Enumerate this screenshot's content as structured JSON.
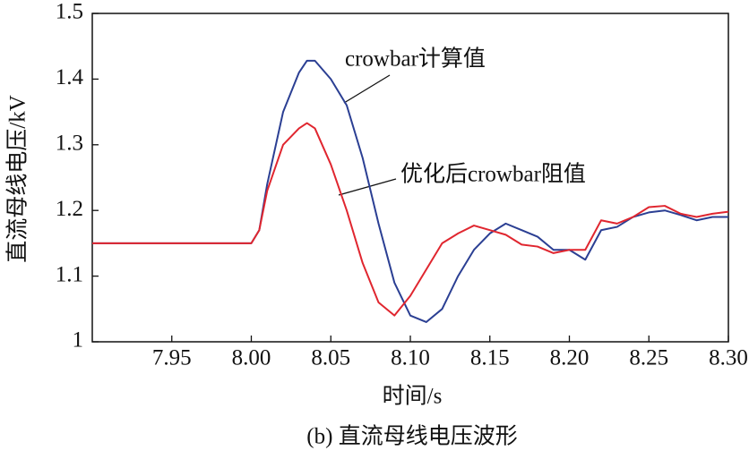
{
  "chart_data": {
    "type": "line",
    "x_label": "时间/s",
    "y_label": "直流母线电压/kV",
    "caption": "(b) 直流母线电压波形",
    "annotations": [
      {
        "text": "crowbar计算值"
      },
      {
        "text": "优化后crowbar阻值"
      }
    ],
    "x": [
      7.9,
      8.0,
      8.005,
      8.01,
      8.02,
      8.03,
      8.035,
      8.04,
      8.05,
      8.06,
      8.07,
      8.08,
      8.09,
      8.1,
      8.11,
      8.12,
      8.13,
      8.14,
      8.15,
      8.16,
      8.17,
      8.18,
      8.19,
      8.2,
      8.21,
      8.22,
      8.23,
      8.24,
      8.25,
      8.26,
      8.27,
      8.28,
      8.29,
      8.3
    ],
    "series": [
      {
        "name": "crowbar计算值",
        "color": "#2b3f93",
        "values": [
          1.15,
          1.15,
          1.17,
          1.24,
          1.35,
          1.41,
          1.428,
          1.428,
          1.4,
          1.36,
          1.28,
          1.18,
          1.09,
          1.04,
          1.03,
          1.05,
          1.1,
          1.14,
          1.165,
          1.18,
          1.17,
          1.16,
          1.14,
          1.14,
          1.125,
          1.17,
          1.175,
          1.19,
          1.197,
          1.2,
          1.193,
          1.185,
          1.19,
          1.19
        ]
      },
      {
        "name": "优化后crowbar阻值",
        "color": "#e0262f",
        "values": [
          1.15,
          1.15,
          1.17,
          1.23,
          1.3,
          1.325,
          1.333,
          1.325,
          1.27,
          1.2,
          1.12,
          1.06,
          1.04,
          1.07,
          1.11,
          1.15,
          1.165,
          1.177,
          1.17,
          1.163,
          1.148,
          1.145,
          1.135,
          1.14,
          1.14,
          1.185,
          1.18,
          1.19,
          1.205,
          1.207,
          1.195,
          1.19,
          1.195,
          1.198
        ]
      }
    ],
    "xlim": [
      7.9,
      8.3
    ],
    "xticks": [
      7.95,
      {
        "value": 8.0,
        "label": "8.00"
      },
      8.05,
      {
        "value": 8.1,
        "label": "8.10"
      },
      8.15,
      {
        "value": 8.2,
        "label": "8.20"
      },
      8.25,
      {
        "value": 8.3,
        "label": "8.30"
      }
    ],
    "ylim": [
      1,
      1.5
    ],
    "yticks": [
      1,
      1.1,
      1.2,
      1.3,
      1.4,
      1.5
    ]
  }
}
